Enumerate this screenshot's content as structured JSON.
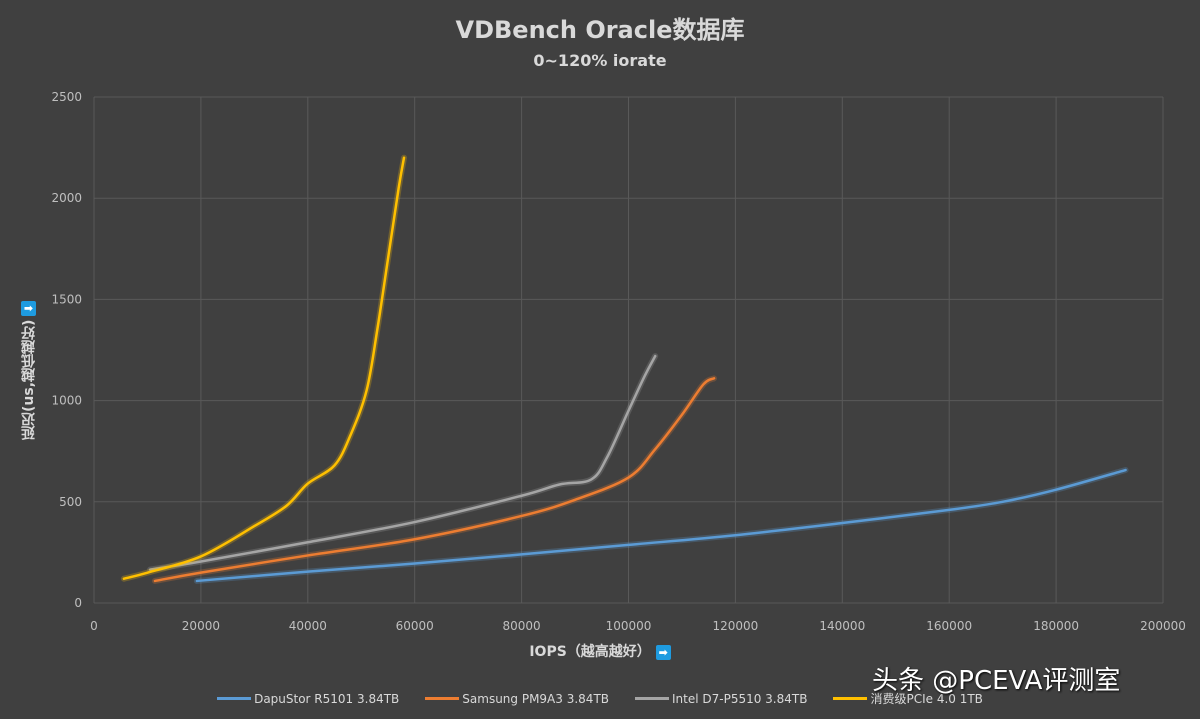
{
  "chart_data": {
    "type": "line",
    "title": "VDBench Oracle数据库",
    "subtitle": "0~120% iorate",
    "xlabel": "IOPS（越高越好）",
    "ylabel": "延迟(us,越低越好)",
    "xlim": [
      0,
      200000
    ],
    "ylim": [
      0,
      2500
    ],
    "xticks": [
      "0",
      "20000",
      "40000",
      "60000",
      "80000",
      "100000",
      "120000",
      "140000",
      "160000",
      "180000",
      "200000"
    ],
    "yticks": [
      "0",
      "500",
      "1000",
      "1500",
      "2000",
      "2500"
    ],
    "grid": true,
    "legend_position": "bottom",
    "series": [
      {
        "name": "DapuStor R5101 3.84TB",
        "color": "#5b9bd5",
        "points": [
          [
            19250,
            109
          ],
          [
            40000,
            155
          ],
          [
            60000,
            195
          ],
          [
            80000,
            240
          ],
          [
            100000,
            287
          ],
          [
            120000,
            335
          ],
          [
            140000,
            395
          ],
          [
            160000,
            460
          ],
          [
            170000,
            500
          ],
          [
            180000,
            560
          ],
          [
            193000,
            657
          ]
        ]
      },
      {
        "name": "Samsung PM9A3 3.84TB",
        "color": "#ed7d31",
        "points": [
          [
            11400,
            109
          ],
          [
            20000,
            150
          ],
          [
            40000,
            235
          ],
          [
            60000,
            315
          ],
          [
            80000,
            430
          ],
          [
            90000,
            510
          ],
          [
            100000,
            620
          ],
          [
            105000,
            760
          ],
          [
            110000,
            930
          ],
          [
            114000,
            1080
          ],
          [
            116000,
            1110
          ]
        ]
      },
      {
        "name": "Intel D7-P5510 3.84TB",
        "color": "#a5a5a5",
        "points": [
          [
            10500,
            165
          ],
          [
            20000,
            205
          ],
          [
            40000,
            300
          ],
          [
            60000,
            400
          ],
          [
            80000,
            530
          ],
          [
            87000,
            585
          ],
          [
            93000,
            610
          ],
          [
            96000,
            720
          ],
          [
            100000,
            950
          ],
          [
            103000,
            1120
          ],
          [
            105000,
            1220
          ]
        ]
      },
      {
        "name": "消费级PCIe 4.0 1TB",
        "color": "#ffc000",
        "points": [
          [
            5600,
            120
          ],
          [
            10000,
            150
          ],
          [
            20000,
            230
          ],
          [
            30000,
            380
          ],
          [
            36000,
            480
          ],
          [
            40000,
            590
          ],
          [
            45000,
            680
          ],
          [
            48000,
            830
          ],
          [
            51000,
            1050
          ],
          [
            53000,
            1350
          ],
          [
            55000,
            1700
          ],
          [
            57000,
            2050
          ],
          [
            58000,
            2200
          ]
        ]
      }
    ]
  },
  "y_arrow_icon": "arrow-down-icon",
  "x_arrow_icon": "arrow-right-icon",
  "arrows": {
    "down": "⬇",
    "right": "➡"
  },
  "watermark": "头条 @PCEVA评测室"
}
